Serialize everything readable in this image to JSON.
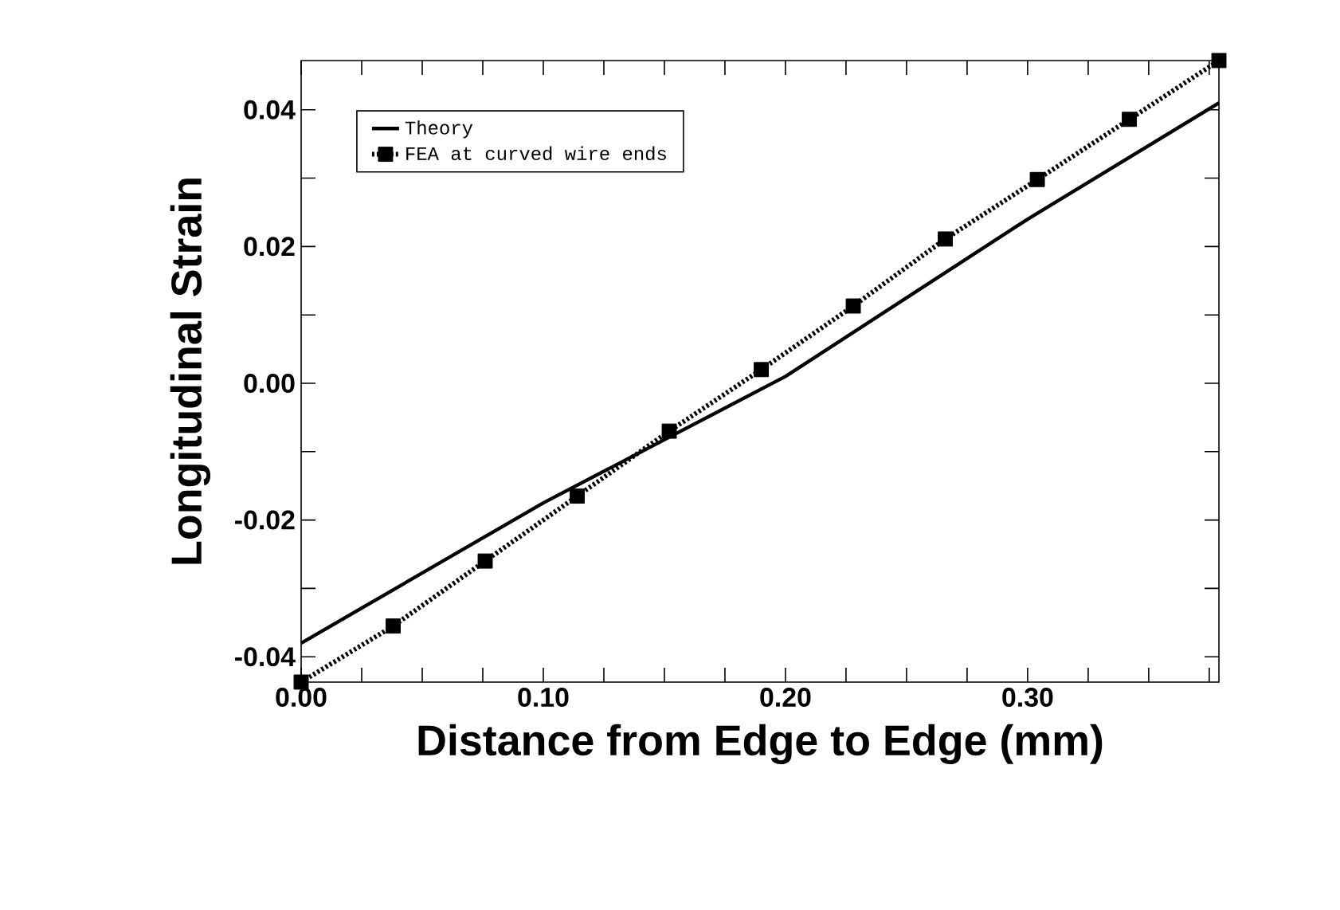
{
  "chart_data": {
    "type": "line",
    "xlabel": "Distance from Edge to Edge (mm)",
    "ylabel": "Longitudinal Strain",
    "xlim": [
      0,
      0.379
    ],
    "ylim": [
      -0.0437,
      0.0472
    ],
    "xticks": [
      {
        "value": 0,
        "label": "0.00"
      },
      {
        "value": 0.025,
        "label": null
      },
      {
        "value": 0.05,
        "label": null
      },
      {
        "value": 0.075,
        "label": null
      },
      {
        "value": 0.1,
        "label": "0.10"
      },
      {
        "value": 0.125,
        "label": null
      },
      {
        "value": 0.15,
        "label": null
      },
      {
        "value": 0.175,
        "label": null
      },
      {
        "value": 0.2,
        "label": "0.20"
      },
      {
        "value": 0.225,
        "label": null
      },
      {
        "value": 0.25,
        "label": null
      },
      {
        "value": 0.275,
        "label": null
      },
      {
        "value": 0.3,
        "label": "0.30"
      },
      {
        "value": 0.325,
        "label": null
      },
      {
        "value": 0.35,
        "label": null
      },
      {
        "value": 0.375,
        "label": null
      }
    ],
    "yticks": [
      {
        "value": -0.04,
        "label": "-0.04"
      },
      {
        "value": -0.03,
        "label": null
      },
      {
        "value": -0.02,
        "label": "-0.02"
      },
      {
        "value": -0.01,
        "label": null
      },
      {
        "value": 0,
        "label": "0.00"
      },
      {
        "value": 0.01,
        "label": null
      },
      {
        "value": 0.02,
        "label": "0.02"
      },
      {
        "value": 0.03,
        "label": null
      },
      {
        "value": 0.04,
        "label": "0.04"
      }
    ],
    "legend": "top left",
    "series": [
      {
        "name": "Theory",
        "color": "#000000",
        "line_style": "solid",
        "marker": "none",
        "x": [
          0,
          0.1,
          0.2,
          0.3,
          0.379
        ],
        "values": [
          -0.038,
          -0.0175,
          0.001,
          0.024,
          0.041
        ]
      },
      {
        "name": "FEA at curved wire ends",
        "color": "#000000",
        "line_style": "dotted",
        "marker": "square",
        "x": [
          0,
          0.038,
          0.076,
          0.114,
          0.152,
          0.19,
          0.228,
          0.266,
          0.304,
          0.342,
          0.379
        ],
        "values": [
          -0.0437,
          -0.0355,
          -0.026,
          -0.0165,
          -0.007,
          0.002,
          0.0113,
          0.0211,
          0.0298,
          0.0386,
          0.0472
        ]
      }
    ]
  }
}
